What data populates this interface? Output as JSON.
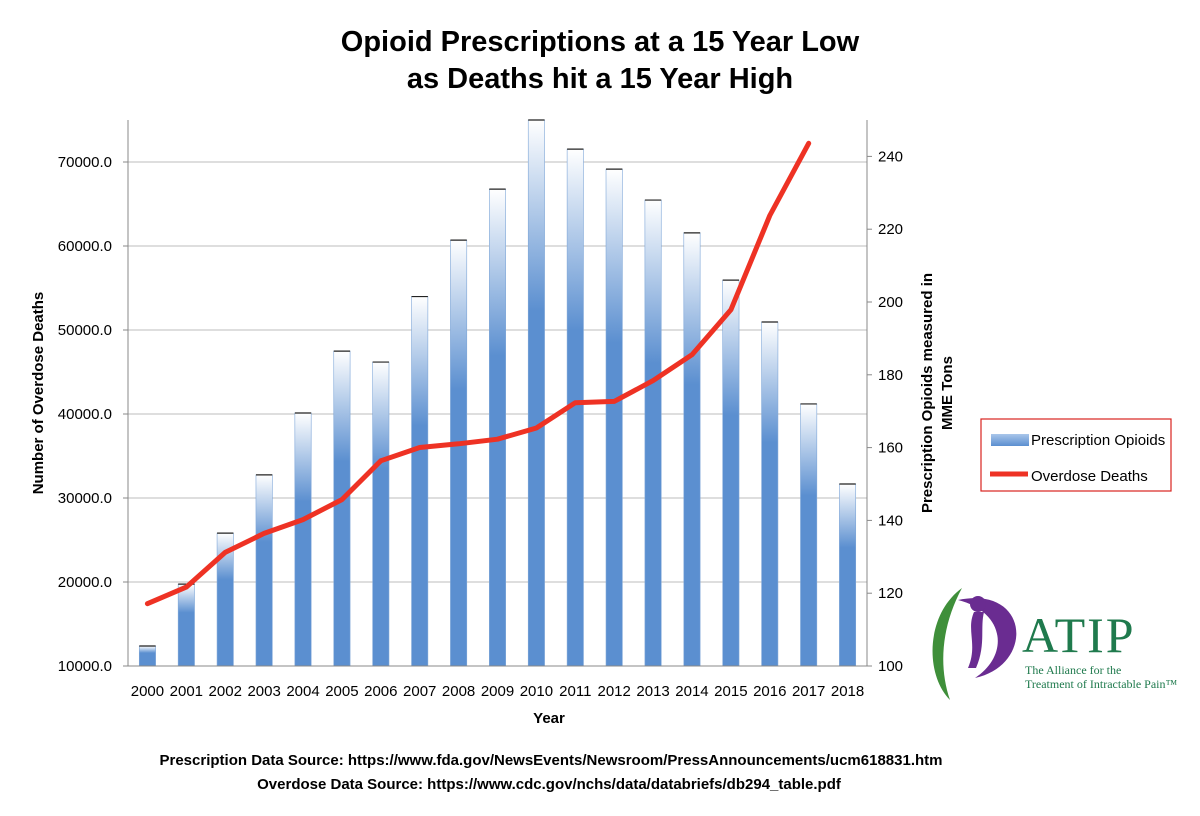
{
  "chart_data": {
    "type": "bar+line",
    "title": [
      "Opioid Prescriptions at a 15 Year Low",
      "as Deaths hit a 15 Year High"
    ],
    "xlabel": "Year",
    "ylabel_left": "Number of Overdose Deaths",
    "ylabel_right": [
      "Prescription Opioids measured in",
      "MME Tons"
    ],
    "categories": [
      "2000",
      "2001",
      "2002",
      "2003",
      "2004",
      "2005",
      "2006",
      "2007",
      "2008",
      "2009",
      "2010",
      "2011",
      "2012",
      "2013",
      "2014",
      "2015",
      "2016",
      "2017",
      "2018"
    ],
    "y_left": {
      "min": 10000,
      "max": 75000,
      "ticks": [
        10000,
        20000,
        30000,
        40000,
        50000,
        60000,
        70000
      ],
      "tick_labels": [
        "10000.0",
        "20000.0",
        "30000.0",
        "40000.0",
        "50000.0",
        "60000.0",
        "70000.0"
      ]
    },
    "y_right": {
      "min": 100,
      "max": 250,
      "ticks": [
        100,
        120,
        140,
        160,
        180,
        200,
        220,
        240
      ],
      "tick_labels": [
        "100",
        "120",
        "140",
        "160",
        "180",
        "200",
        "220",
        "240"
      ]
    },
    "series": [
      {
        "name": "Prescription Opioids",
        "type": "bar",
        "axis": "right",
        "color": "#5b8fd0",
        "values": [
          105.5,
          122.5,
          136.5,
          152.5,
          169.5,
          186.5,
          183.5,
          201.5,
          217,
          231,
          250,
          242,
          236.5,
          228,
          219,
          206,
          194.5,
          172,
          150
        ]
      },
      {
        "name": "Overdose Deaths",
        "type": "line",
        "axis": "left",
        "color": "#ee3224",
        "values": [
          17415,
          19394,
          23518,
          25785,
          27424,
          29813,
          34425,
          36010,
          36450,
          37004,
          38329,
          41340,
          41502,
          43982,
          47055,
          52404,
          63632,
          72224,
          null
        ]
      }
    ],
    "legend": {
      "position": "right",
      "entries": [
        "Prescription Opioids",
        "Overdose Deaths"
      ]
    }
  },
  "sources": {
    "prescription": "Prescription Data Source: https://www.fda.gov/NewsEvents/Newsroom/PressAnnouncements/ucm618831.htm",
    "overdose": "Overdose Data Source:  https://www.cdc.gov/nchs/data/databriefs/db294_table.pdf"
  },
  "logo": {
    "name": "ATIP",
    "tagline": [
      "The Alliance for the",
      "Treatment of Intractable Pain™"
    ]
  }
}
